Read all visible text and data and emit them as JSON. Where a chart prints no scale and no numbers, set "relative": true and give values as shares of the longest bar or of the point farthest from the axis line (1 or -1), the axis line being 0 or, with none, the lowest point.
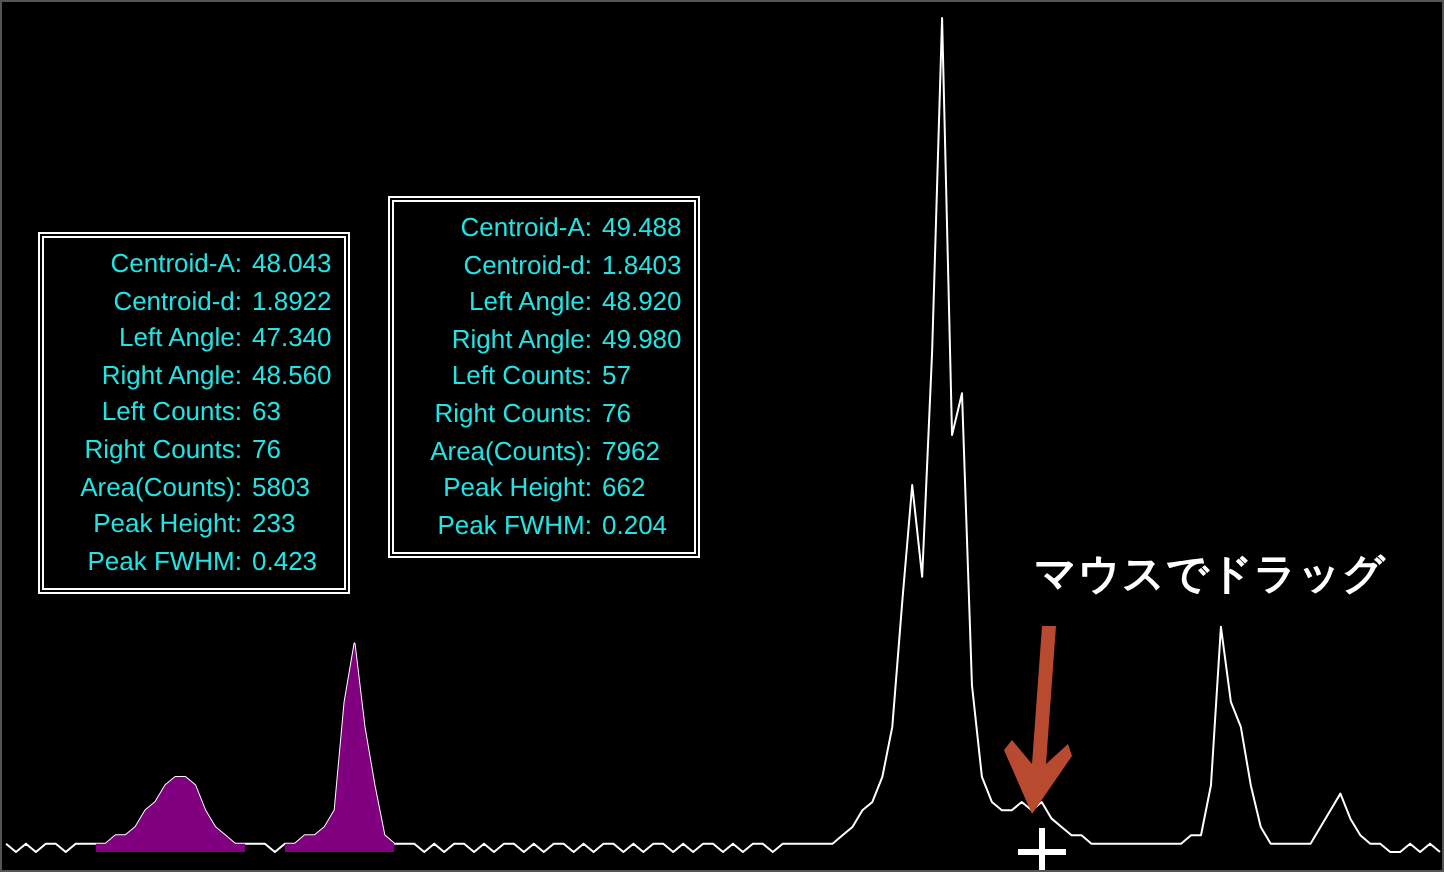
{
  "chart_data": {
    "type": "line",
    "relative": true,
    "legend": false,
    "marker": "none",
    "categories": [
      null,
      null,
      null,
      null,
      null,
      null,
      null,
      null,
      null,
      null,
      null,
      null,
      null,
      null,
      null,
      null,
      null,
      null,
      null,
      null,
      null,
      null,
      null,
      null,
      null,
      null,
      null,
      null,
      null,
      null,
      null,
      null,
      null,
      null,
      null,
      null,
      null,
      null,
      null,
      null,
      null,
      null,
      null,
      null,
      null,
      null,
      null,
      null,
      null,
      null,
      null,
      null,
      null,
      null,
      null,
      null,
      null,
      null,
      null,
      null,
      null,
      null,
      null,
      null,
      null,
      null,
      null,
      null,
      null,
      null,
      null,
      null,
      null,
      null,
      null,
      null,
      null,
      null,
      null,
      null,
      null,
      null,
      null,
      null,
      null,
      null,
      null,
      null,
      null,
      null,
      null,
      null,
      null,
      null,
      null,
      null,
      null,
      null,
      null,
      null,
      null,
      null,
      null,
      null,
      null,
      null,
      null,
      null,
      null,
      null,
      null,
      null,
      null,
      null,
      null,
      null,
      null,
      null,
      null,
      null,
      null,
      null,
      null,
      null,
      null,
      null,
      null,
      null,
      null,
      null,
      null,
      null,
      null,
      null,
      null,
      null,
      null,
      null,
      null,
      null,
      null,
      null,
      null,
      null,
      null
    ],
    "series": [
      {
        "type": "area",
        "color": "#800080",
        "values": [
          null,
          null,
          null,
          null,
          null,
          null,
          null,
          null,
          null,
          0.01,
          0.01,
          0.02,
          0.02,
          0.03,
          0.05,
          0.06,
          0.08,
          0.09,
          0.09,
          0.08,
          0.05,
          0.03,
          0.02,
          0.01,
          0.01,
          null,
          null,
          null,
          0.01,
          0.01,
          0.02,
          0.02,
          0.03,
          0.05,
          0.18,
          0.25,
          0.15,
          0.08,
          0.02,
          0.01,
          null,
          null,
          null,
          null,
          null,
          null,
          null,
          null,
          null,
          null,
          null,
          null,
          null,
          null,
          null,
          null,
          null,
          null,
          null,
          null,
          null,
          null,
          null,
          null,
          null,
          null,
          null,
          null,
          null,
          null,
          null,
          null,
          null,
          null,
          null,
          null,
          null,
          null,
          null,
          null,
          null,
          null,
          null,
          null,
          null,
          null,
          null,
          null,
          null,
          null,
          null,
          null,
          null,
          null,
          null,
          null,
          null,
          null,
          null,
          null,
          null,
          null,
          null,
          null,
          null,
          null,
          null,
          null,
          null,
          null,
          null,
          null,
          null,
          null,
          null,
          null,
          null,
          null,
          null,
          null,
          null,
          null,
          null,
          null,
          null,
          null,
          null,
          null,
          null,
          null,
          null,
          null,
          null,
          null,
          null,
          null,
          null,
          null,
          null,
          null,
          null,
          null,
          null,
          null,
          null
        ]
      },
      {
        "color": "#ffffff",
        "values": [
          0.01,
          0,
          0.01,
          0,
          0.01,
          0.01,
          0,
          0.01,
          0.01,
          0.01,
          0.01,
          0.02,
          0.02,
          0.03,
          0.05,
          0.06,
          0.08,
          0.09,
          0.09,
          0.08,
          0.05,
          0.03,
          0.02,
          0.01,
          0.01,
          0.01,
          0.01,
          0,
          0.01,
          0.01,
          0.02,
          0.02,
          0.03,
          0.05,
          0.18,
          0.25,
          0.15,
          0.08,
          0.02,
          0.01,
          0.01,
          0.01,
          0,
          0.01,
          0,
          0.01,
          0.01,
          0,
          0.01,
          0,
          0.01,
          0.01,
          0,
          0.01,
          0,
          0.01,
          0.01,
          0,
          0.01,
          0,
          0.01,
          0.01,
          0,
          0.01,
          0,
          0.01,
          0.01,
          0,
          0.01,
          0,
          0.01,
          0.01,
          0,
          0.01,
          0,
          0.01,
          0.01,
          0,
          0.01,
          0.01,
          0.01,
          0.01,
          0.01,
          0.01,
          0.02,
          0.03,
          0.05,
          0.06,
          0.09,
          0.15,
          0.3,
          0.44,
          0.33,
          0.6,
          1,
          0.5,
          0.55,
          0.2,
          0.09,
          0.06,
          0.05,
          0.05,
          0.06,
          0.05,
          0.06,
          0.04,
          0.03,
          0.02,
          0.02,
          0.01,
          0.01,
          0.01,
          0.01,
          0.01,
          0.01,
          0.01,
          0.01,
          0.01,
          0.01,
          0.02,
          0.02,
          0.08,
          0.27,
          0.18,
          0.15,
          0.08,
          0.03,
          0.01,
          0.01,
          0.01,
          0.01,
          0.01,
          0.03,
          0.05,
          0.07,
          0.04,
          0.02,
          0.01,
          0.01,
          0,
          0,
          0.01,
          0,
          0.01,
          0
        ]
      }
    ],
    "annotations": [
      "Centroid-A: 48.043",
      "Centroid-d: 1.8922",
      "Left Angle: 47.340",
      "Right Angle: 48.560",
      "Left Counts: 63",
      "Right Counts: 76",
      "Area(Counts): 5803",
      "Peak Height: 233",
      "Peak FWHM: 0.423",
      "Centroid-A: 49.488",
      "Centroid-d: 1.8403",
      "Left Angle: 48.920",
      "Right Angle: 49.980",
      "Left Counts: 57",
      "Right Counts: 76",
      "Area(Counts): 7962",
      "Peak Height: 662",
      "Peak FWHM: 0.204",
      "マウスでドラッグ"
    ]
  }
}
